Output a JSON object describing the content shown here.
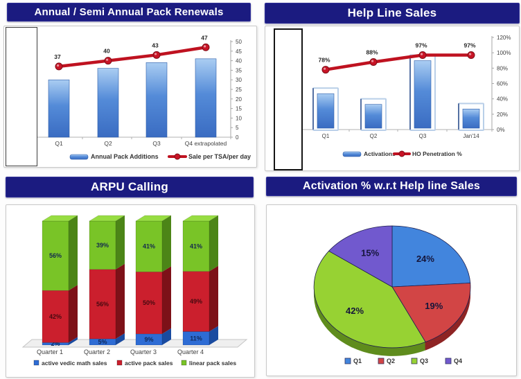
{
  "colors": {
    "title_bar_bg": "#1b1b80",
    "title_text": "#ffffff",
    "chart_border": "#c9c9c9",
    "axis_text": "#404040",
    "grid": "#b0b0b0",
    "bar_fill_top": "#aacdf2",
    "bar_fill_mid": "#548bd8",
    "bar_fill_bottom": "#3a6cc2",
    "bar_stroke": "#2d5ca8",
    "bar_frame_stroke": "#b9cfe8",
    "bar_frame_edge": "#33508c",
    "line_red": "#bf1220",
    "marker_red": "#c81426",
    "marker_ring": "#7e0d17",
    "stack": [
      {
        "front": "#2e6cd4",
        "side": "#1a4ba0",
        "top": "#5d93e8",
        "label": "#10295a"
      },
      {
        "front": "#cb1f2d",
        "side": "#7d1118",
        "top": "#e04a52",
        "label": "#470a10"
      },
      {
        "front": "#79c427",
        "side": "#4c8517",
        "top": "#97dd42",
        "label": "#14294e"
      }
    ],
    "pie": [
      {
        "main": "#4285dd",
        "dark": "#24507f"
      },
      {
        "main": "#d24545",
        "dark": "#8e2424"
      },
      {
        "main": "#97d233",
        "dark": "#5f8c1d"
      },
      {
        "main": "#7159ce",
        "dark": "#463386"
      }
    ],
    "pie_label": "#15153a"
  },
  "chart_data": [
    {
      "id": "pack-renewals",
      "type": "bar",
      "title": "Annual / Semi Annual Pack Renewals",
      "categories": [
        "Q1",
        "Q2",
        "Q3",
        "Q4 extrapolated"
      ],
      "bar_series": {
        "name": "Annual Pack Additions",
        "values": [
          30,
          36,
          39,
          41
        ]
      },
      "line_series": {
        "name": "Sale per TSA/per day",
        "values": [
          37,
          40,
          43,
          47
        ],
        "labels": [
          "37",
          "40",
          "43",
          "47"
        ]
      },
      "y_axis": {
        "side": "right",
        "min": 0,
        "max": 50,
        "step": 5,
        "tick_labels": [
          "0",
          "5",
          "10",
          "15",
          "20",
          "25",
          "30",
          "35",
          "40",
          "45",
          "50"
        ]
      },
      "legend_position": "bottom"
    },
    {
      "id": "help-line-sales",
      "type": "bar",
      "title": "Help Line Sales",
      "categories": [
        "Q1",
        "Q2",
        "Q3",
        "Jan'14"
      ],
      "bar_series": {
        "name": "Activations",
        "values": [
          54,
          40,
          97,
          34
        ]
      },
      "line_series": {
        "name": "HO Penetration %",
        "values": [
          78,
          88,
          97,
          97
        ],
        "labels": [
          "78%",
          "88%",
          "97%",
          "97%"
        ]
      },
      "y_axis": {
        "side": "right",
        "min": 0,
        "max": 120,
        "step": 20,
        "tick_labels": [
          "0%",
          "20%",
          "40%",
          "60%",
          "80%",
          "100%",
          "120%"
        ]
      },
      "legend_position": "bottom"
    },
    {
      "id": "arpu-calling",
      "type": "bar",
      "title": "ARPU Calling",
      "categories": [
        "Quarter 1",
        "Quarter 2",
        "Quarter 3",
        "Quarter 4"
      ],
      "series": [
        {
          "name": "active vedic math sales",
          "values": [
            2,
            5,
            9,
            11
          ],
          "labels": [
            "2%",
            "5%",
            "9%",
            "11%"
          ]
        },
        {
          "name": "active pack sales",
          "values": [
            42,
            56,
            50,
            49
          ],
          "labels": [
            "42%",
            "56%",
            "50%",
            "49%"
          ]
        },
        {
          "name": "linear pack sales",
          "values": [
            56,
            39,
            41,
            41
          ],
          "labels": [
            "56%",
            "39%",
            "41%",
            "41%"
          ]
        }
      ],
      "stacking": "percent",
      "legend_position": "bottom"
    },
    {
      "id": "activation-pie",
      "type": "pie",
      "title": "Activation % w.r.t Help line Sales",
      "slices": [
        {
          "label": "Q1",
          "value": 24,
          "text": "24%"
        },
        {
          "label": "Q2",
          "value": 19,
          "text": "19%"
        },
        {
          "label": "Q3",
          "value": 42,
          "text": "42%"
        },
        {
          "label": "Q4",
          "value": 15,
          "text": "15%"
        }
      ],
      "start_angle_deg": 0,
      "direction": "clockwise",
      "legend_position": "bottom"
    }
  ]
}
